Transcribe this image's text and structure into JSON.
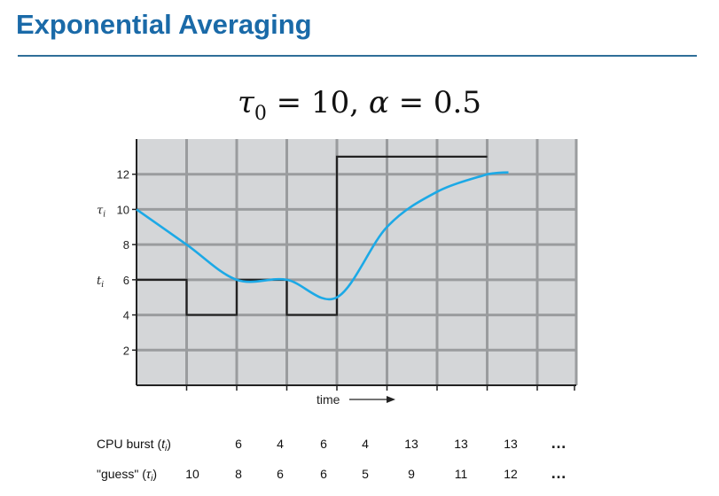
{
  "slide": {
    "title": "Exponential Averaging",
    "formula": {
      "tau": "τ",
      "tau_sub": "0",
      "eq1": " = 10, ",
      "alpha": "α",
      "eq2": " = 0.5"
    }
  },
  "chart_data": {
    "type": "line",
    "title": "",
    "xlabel": "time",
    "ylabel": "",
    "y_ticks": [
      2,
      4,
      6,
      8,
      10,
      12
    ],
    "ylim": [
      0,
      14
    ],
    "x_intervals": 9,
    "y_axis_symbols": {
      "tau_label": {
        "symbol": "τ",
        "sub": "i",
        "at": 10
      },
      "t_label": {
        "symbol": "t",
        "sub": "i",
        "at": 6
      }
    },
    "grid": true,
    "series": [
      {
        "values": [
          6,
          4,
          6,
          4,
          13,
          13,
          13
        ],
        "step": true,
        "color": "#222222"
      },
      {
        "values": [
          10,
          8,
          6,
          6,
          5,
          9,
          11,
          12
        ],
        "smooth": true,
        "color": "#1ca9e6"
      }
    ],
    "table": {
      "rows": [
        {
          "label": "CPU burst (",
          "label_sym": "t",
          "label_sub": "i",
          "label_end": ")",
          "values": [
            "6",
            "4",
            "6",
            "4",
            "13",
            "13",
            "13"
          ],
          "trailing": "…"
        },
        {
          "label": "\"guess\" (",
          "label_sym": "τ",
          "label_sub": "i",
          "label_end": ")",
          "values": [
            "10",
            "8",
            "6",
            "6",
            "5",
            "9",
            "11",
            "12"
          ],
          "trailing": "…"
        }
      ]
    }
  }
}
